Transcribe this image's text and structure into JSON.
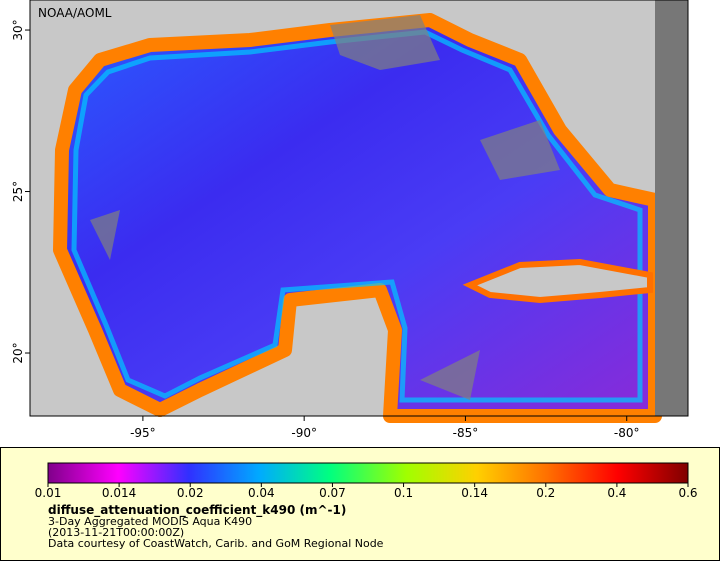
{
  "header": {
    "credit": "NOAA/AOML"
  },
  "map": {
    "lonlim": [
      -98.5,
      -78.1
    ],
    "latlim": [
      18.05,
      30.93
    ],
    "lon_ticks": [
      {
        "value": -95,
        "label": "-95°"
      },
      {
        "value": -90,
        "label": "-90°"
      },
      {
        "value": -85,
        "label": "-85°"
      },
      {
        "value": -80,
        "label": "-80°"
      }
    ],
    "lat_ticks": [
      {
        "value": 30,
        "label": "30°"
      },
      {
        "value": 25,
        "label": "25°"
      },
      {
        "value": 20,
        "label": "20°"
      }
    ]
  },
  "legend": {
    "colorbar_ticks": [
      0.01,
      0.014,
      0.02,
      0.04,
      0.07,
      0.1,
      0.14,
      0.2,
      0.4,
      0.6
    ],
    "variable": "diffuse_attenuation_coefficient_k490 (m^-1)",
    "lines": [
      "3-Day Aggregated MODIS Aqua K490",
      "(2013-11-21T00:00:00Z)",
      "Data courtesy of CoastWatch, Carib. and GoM Regional Node"
    ]
  }
}
